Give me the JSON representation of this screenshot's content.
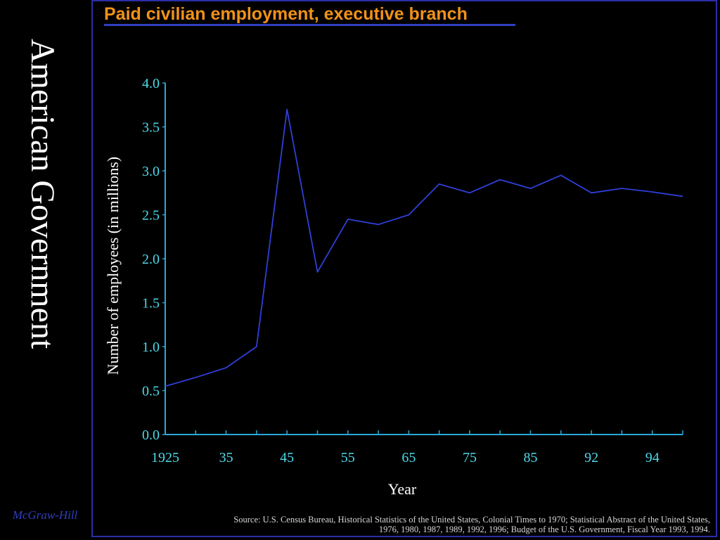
{
  "slide": {
    "side_title": "American Government",
    "publisher": "McGraw-Hill",
    "source": "Source: U.S. Census Bureau, Historical Statistics of the United States, Colonial Times to 1970; Statistical Abstract of the United States, 1976, 1980, 1987, 1989, 1992, 1996; Budget of the U.S. Government, Fiscal Year 1993, 1994."
  },
  "colors": {
    "background": "#000000",
    "title": "#f0921a",
    "line": "#2f3fd8",
    "axis": "#2aa8d8",
    "tick_label": "#4fd8e8",
    "frame": "#2b2fa6"
  },
  "chart_data": {
    "type": "line",
    "title": "Paid civilian employment, executive branch",
    "xlabel": "Year",
    "ylabel": "Number of employees (in millions)",
    "ylim": [
      0,
      4
    ],
    "y_ticks": [
      "0.0",
      "0.5",
      "1.0",
      "1.5",
      "2.0",
      "2.5",
      "3.0",
      "3.5",
      "4.0"
    ],
    "x_tick_labels": [
      "1925",
      "35",
      "45",
      "55",
      "65",
      "75",
      "85",
      "92",
      "94"
    ],
    "x": [
      "1925",
      "1930",
      "1935",
      "1940",
      "1945",
      "1950",
      "1955",
      "1960",
      "1965",
      "1970",
      "1975",
      "1980",
      "1985",
      "1988",
      "1990",
      "1992",
      "1993",
      "1994"
    ],
    "series": [
      {
        "values": [
          0.55,
          0.65,
          0.76,
          1.0,
          3.7,
          1.85,
          2.45,
          2.39,
          2.5,
          2.85,
          2.75,
          2.9,
          2.8,
          2.95,
          2.75,
          2.8,
          2.76,
          2.71
        ]
      }
    ],
    "grid": false
  }
}
